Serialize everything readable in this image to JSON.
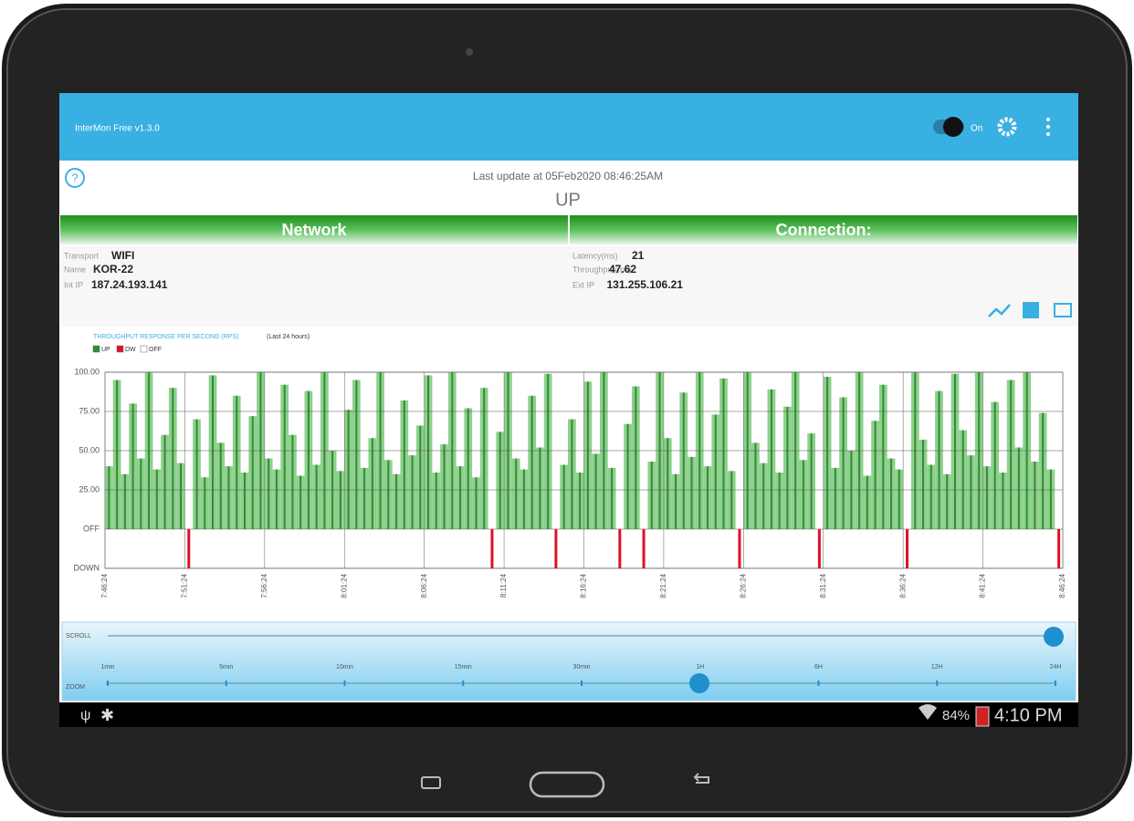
{
  "app_bar": {
    "title": "InterMon Free v1.3.0",
    "toggle_label": "On"
  },
  "status": {
    "last_update": "Last update at 05Feb2020 08:46:25AM",
    "state": "UP"
  },
  "sections": {
    "network": "Network",
    "connection": "Connection:"
  },
  "network": [
    {
      "label": "Transport",
      "value": "WIFI"
    },
    {
      "label": "Name",
      "value": "KOR-22"
    },
    {
      "label": "Int IP",
      "value": "187.24.193.141"
    }
  ],
  "connection": [
    {
      "label": "Latency(ms)",
      "value": "21"
    },
    {
      "label": "Throughput(rps)",
      "value": "47.62"
    },
    {
      "label": "Ext IP",
      "value": "131.255.106.21"
    }
  ],
  "chart_data": {
    "type": "bar",
    "title": "THROUGHPUT RESPONSE PER SECOND (RPS)",
    "subtitle": "(Last 24 hours)",
    "series": [
      {
        "name": "UP",
        "color": "#2f8f2f",
        "values": [
          40,
          95,
          35,
          80,
          45,
          100,
          38,
          60,
          90,
          42,
          null,
          70,
          33,
          98,
          55,
          40,
          85,
          36,
          72,
          100,
          45,
          38,
          92,
          60,
          34,
          88,
          41,
          100,
          50,
          37,
          76,
          95,
          39,
          58,
          100,
          44,
          35,
          82,
          47,
          66,
          98,
          36,
          54,
          100,
          40,
          77,
          33,
          90,
          null,
          62,
          100,
          45,
          38,
          85,
          52,
          99,
          null,
          41,
          70,
          36,
          94,
          48,
          100,
          39,
          null,
          67,
          91,
          null,
          43,
          100,
          58,
          35,
          87,
          46,
          100,
          40,
          73,
          96,
          37,
          null,
          100,
          55,
          42,
          89,
          36,
          78,
          100,
          44,
          61,
          null,
          97,
          39,
          84,
          50,
          100,
          34,
          69,
          92,
          45,
          38,
          null,
          100,
          57,
          41,
          88,
          35,
          99,
          63,
          47,
          100,
          40,
          81,
          36,
          95,
          52,
          100,
          43,
          74,
          38,
          null
        ]
      },
      {
        "name": "DW",
        "color": "#e0102a",
        "values": [
          null,
          null,
          null,
          null,
          null,
          null,
          null,
          null,
          null,
          null,
          -25,
          null,
          null,
          null,
          null,
          null,
          null,
          null,
          null,
          null,
          null,
          null,
          null,
          null,
          null,
          null,
          null,
          null,
          null,
          null,
          null,
          null,
          null,
          null,
          null,
          null,
          null,
          null,
          null,
          null,
          null,
          null,
          null,
          null,
          null,
          null,
          null,
          null,
          -25,
          null,
          null,
          null,
          null,
          null,
          null,
          null,
          -25,
          null,
          null,
          null,
          null,
          null,
          null,
          null,
          -25,
          null,
          null,
          -25,
          null,
          null,
          null,
          null,
          null,
          null,
          null,
          null,
          null,
          null,
          null,
          -25,
          null,
          null,
          null,
          null,
          null,
          null,
          null,
          null,
          null,
          -25,
          null,
          null,
          null,
          null,
          null,
          null,
          null,
          null,
          null,
          null,
          -25,
          null,
          null,
          null,
          null,
          null,
          null,
          null,
          null,
          null,
          null,
          null,
          null,
          null,
          null,
          null,
          null,
          null,
          null,
          -25
        ]
      },
      {
        "name": "OFF",
        "color": "#ffffff",
        "values": []
      }
    ],
    "ylim": [
      -25,
      100
    ],
    "yticks": [
      {
        "value": 100,
        "label": "100.00"
      },
      {
        "value": 75,
        "label": "75.00"
      },
      {
        "value": 50,
        "label": "50.00"
      },
      {
        "value": 25,
        "label": "25.00"
      },
      {
        "value": 0,
        "label": "OFF"
      },
      {
        "value": -25,
        "label": "DOWN"
      }
    ],
    "xticks": [
      "7:46:24",
      "7:51:24",
      "7:56:24",
      "8:01:24",
      "8:06:24",
      "8:11:24",
      "8:16:24",
      "8:21:24",
      "8:26:24",
      "8:31:24",
      "8:36:24",
      "8:41:24",
      "8:46:24"
    ],
    "grid": true
  },
  "slider": {
    "scroll_label": "SCROLL",
    "zoom_label": "ZOOM",
    "zoom_steps": [
      "1min",
      "5min",
      "10min",
      "15min",
      "30min",
      "1H",
      "6H",
      "12H",
      "24H"
    ]
  },
  "system_bar": {
    "battery": "84%",
    "time": "4:10 PM"
  }
}
